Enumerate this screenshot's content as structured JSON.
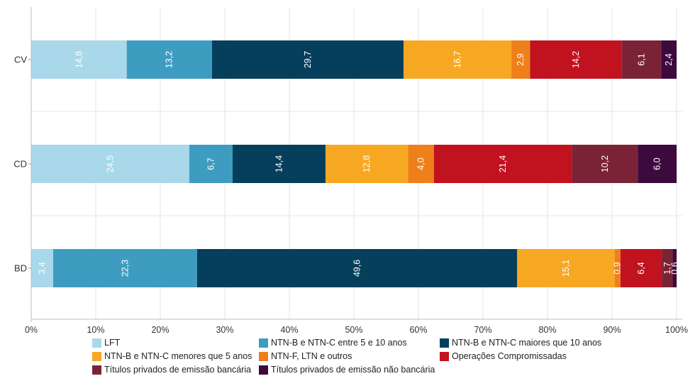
{
  "chart_data": {
    "type": "bar",
    "orientation": "horizontal",
    "stacked": true,
    "categories": [
      "CV",
      "CD",
      "BD"
    ],
    "xlim": [
      0,
      100
    ],
    "x_ticks": [
      "0%",
      "10%",
      "20%",
      "30%",
      "40%",
      "50%",
      "60%",
      "70%",
      "80%",
      "90%",
      "100%"
    ],
    "grid": true,
    "legend_position": "bottom",
    "series": [
      {
        "name": "LFT",
        "color": "#a8d8ea",
        "values": [
          14.8,
          24.5,
          3.4
        ],
        "labels": [
          "14,8",
          "24,5",
          "3,4"
        ]
      },
      {
        "name": "NTN-B e NTN-C entre 5 e 10 anos",
        "color": "#3e9cc1",
        "values": [
          13.2,
          6.7,
          22.3
        ],
        "labels": [
          "13,2",
          "6,7",
          "22,3"
        ]
      },
      {
        "name": "NTN-B e NTN-C maiores que 10 anos",
        "color": "#053f5c",
        "values": [
          29.7,
          14.4,
          49.6
        ],
        "labels": [
          "29,7",
          "14,4",
          "49,6"
        ]
      },
      {
        "name": "NTN-B e NTN-C menores que 5 anos",
        "color": "#f7a823",
        "values": [
          16.7,
          12.8,
          15.1
        ],
        "labels": [
          "16,7",
          "12,8",
          "15,1"
        ]
      },
      {
        "name": "NTN-F, LTN e outros",
        "color": "#ef7f1a",
        "values": [
          2.9,
          4.0,
          0.9
        ],
        "labels": [
          "2,9",
          "4,0",
          "0,9"
        ]
      },
      {
        "name": "Operações Compromissadas",
        "color": "#c1121f",
        "values": [
          14.2,
          21.4,
          6.4
        ],
        "labels": [
          "14,2",
          "21,4",
          "6,4"
        ]
      },
      {
        "name": "Títulos privados de emissão bancária",
        "color": "#7b2336",
        "values": [
          6.1,
          10.2,
          1.7
        ],
        "labels": [
          "6,1",
          "10,2",
          "1,7"
        ]
      },
      {
        "name": "Títulos privados de emissão não bancária",
        "color": "#3d0a3e",
        "values": [
          2.4,
          6.0,
          0.6
        ],
        "labels": [
          "2,4",
          "6,0",
          "0,6"
        ]
      }
    ]
  }
}
